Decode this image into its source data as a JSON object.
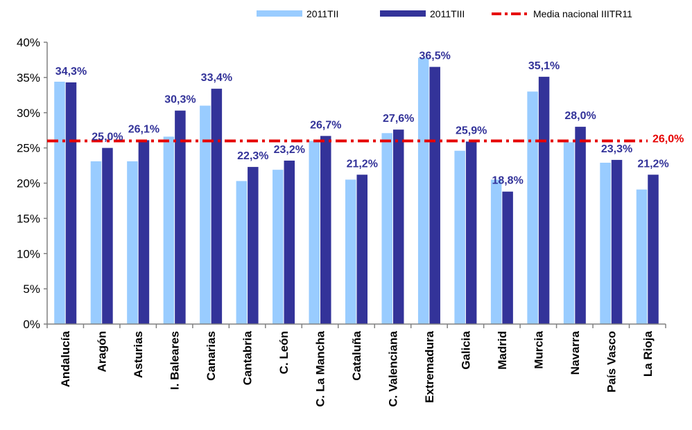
{
  "chart_data": {
    "type": "bar",
    "categories": [
      "Andalucía",
      "Aragón",
      "Asturias",
      "I. Baleares",
      "Canarias",
      "Cantabria",
      "C. León",
      "C. La Mancha",
      "Cataluña",
      "C. Valenciana",
      "Extremadura",
      "Galicia",
      "Madrid",
      "Murcia",
      "Navarra",
      "País Vasco",
      "La Rioja"
    ],
    "series": [
      {
        "name": "2011TII",
        "color": "#99ccff",
        "values": [
          34.4,
          23.1,
          23.1,
          26.6,
          31.0,
          20.3,
          21.9,
          26.0,
          20.5,
          27.1,
          37.8,
          24.6,
          20.5,
          33.0,
          25.8,
          22.9,
          19.1
        ]
      },
      {
        "name": "2011TIII",
        "color": "#333399",
        "values": [
          34.3,
          25.0,
          26.1,
          30.3,
          33.4,
          22.3,
          23.2,
          26.7,
          21.2,
          27.6,
          36.5,
          25.9,
          18.8,
          35.1,
          28.0,
          23.3,
          21.2
        ]
      }
    ],
    "data_labels": [
      "34,3%",
      "25,0%",
      "26,1%",
      "30,3%",
      "33,4%",
      "22,3%",
      "23,2%",
      "26,7%",
      "21,2%",
      "27,6%",
      "36,5%",
      "25,9%",
      "18,8%",
      "35,1%",
      "28,0%",
      "23,3%",
      "21,2%"
    ],
    "reference_line": {
      "name": "Media nacional IIITR11",
      "value": 26.0,
      "label": "26,0%",
      "color": "#e60000"
    },
    "yticks": [
      "0%",
      "5%",
      "10%",
      "15%",
      "20%",
      "25%",
      "30%",
      "35%",
      "40%"
    ],
    "ylim": [
      0,
      40
    ],
    "legend_position": "top-right",
    "label_color": "#333399",
    "grid": false
  }
}
